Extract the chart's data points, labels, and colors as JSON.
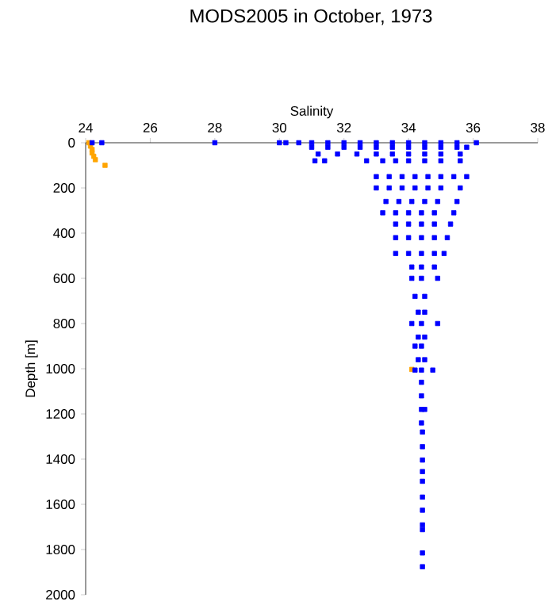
{
  "chart_data": {
    "type": "scatter",
    "title": "MODS2005 in October, 1973",
    "xlabel": "Salinity",
    "ylabel": "Depth [m]",
    "xlim": [
      24,
      38
    ],
    "xticks": [
      24,
      26,
      28,
      30,
      32,
      34,
      36,
      38
    ],
    "ylim": [
      2000,
      0
    ],
    "yticks": [
      0,
      200,
      400,
      600,
      800,
      1000,
      1200,
      1400,
      1600,
      1800,
      2000
    ],
    "marker": "square",
    "grid": false,
    "series": [
      {
        "color": "#ffa500",
        "x": [
          24.1,
          24.15,
          24.2,
          24.2,
          24.25,
          24.3,
          24.6,
          34.1
        ],
        "values": [
          0,
          15,
          30,
          45,
          60,
          75,
          100,
          1003
        ]
      },
      {
        "color": "#0000ff",
        "x": [
          24.2,
          24.5,
          28.0,
          30.0,
          30.2,
          30.6,
          31.0,
          31.5,
          32.0,
          32.5,
          33.0,
          33.5,
          34.0,
          34.5,
          35.0,
          35.5,
          36.1,
          31.0,
          31.5,
          32.0,
          32.5,
          33.0,
          33.5,
          34.0,
          34.5,
          35.0,
          35.5,
          35.8,
          31.2,
          31.8,
          32.4,
          33.0,
          33.5,
          34.0,
          34.5,
          35.0,
          35.6,
          31.1,
          31.4,
          32.7,
          33.2,
          33.6,
          34.0,
          34.5,
          35.0,
          35.6,
          33.0,
          33.4,
          33.8,
          34.2,
          34.6,
          35.0,
          35.4,
          35.8,
          33.0,
          33.4,
          33.8,
          34.2,
          34.6,
          35.0,
          35.6,
          33.3,
          33.7,
          34.1,
          34.5,
          34.9,
          35.5,
          33.2,
          33.6,
          34.0,
          34.4,
          34.8,
          35.4,
          33.6,
          34.0,
          34.4,
          34.8,
          35.3,
          33.6,
          34.0,
          34.4,
          34.8,
          35.2,
          33.6,
          34.0,
          34.4,
          34.8,
          35.1,
          34.1,
          34.4,
          34.8,
          34.1,
          34.4,
          34.9,
          34.2,
          34.5,
          34.3,
          34.5,
          34.1,
          34.4,
          34.9,
          34.3,
          34.5,
          34.2,
          34.4,
          34.3,
          34.5,
          34.2,
          34.4,
          34.75,
          34.4,
          34.4,
          34.4,
          34.5,
          34.4,
          34.43,
          34.43,
          34.43,
          34.43,
          34.43,
          34.43,
          34.43,
          34.43,
          34.43,
          34.43,
          34.43
        ],
        "values": [
          0,
          0,
          0,
          0,
          0,
          0,
          0,
          0,
          0,
          0,
          0,
          0,
          0,
          0,
          0,
          0,
          0,
          20,
          20,
          20,
          20,
          20,
          20,
          20,
          20,
          20,
          20,
          20,
          50,
          50,
          50,
          50,
          50,
          50,
          50,
          50,
          50,
          80,
          80,
          80,
          80,
          80,
          80,
          80,
          80,
          80,
          150,
          150,
          150,
          150,
          150,
          150,
          150,
          150,
          200,
          200,
          200,
          200,
          200,
          200,
          200,
          260,
          260,
          260,
          260,
          260,
          260,
          310,
          310,
          310,
          310,
          310,
          310,
          360,
          360,
          360,
          360,
          360,
          420,
          420,
          420,
          420,
          420,
          490,
          490,
          490,
          490,
          490,
          550,
          550,
          550,
          600,
          600,
          600,
          680,
          680,
          750,
          750,
          800,
          800,
          800,
          860,
          860,
          900,
          900,
          960,
          960,
          1006,
          1006,
          1006,
          1060,
          1120,
          1180,
          1180,
          1240,
          1280,
          1345,
          1404,
          1455,
          1498,
          1568,
          1626,
          1691,
          1712,
          1815,
          1876
        ]
      }
    ]
  }
}
